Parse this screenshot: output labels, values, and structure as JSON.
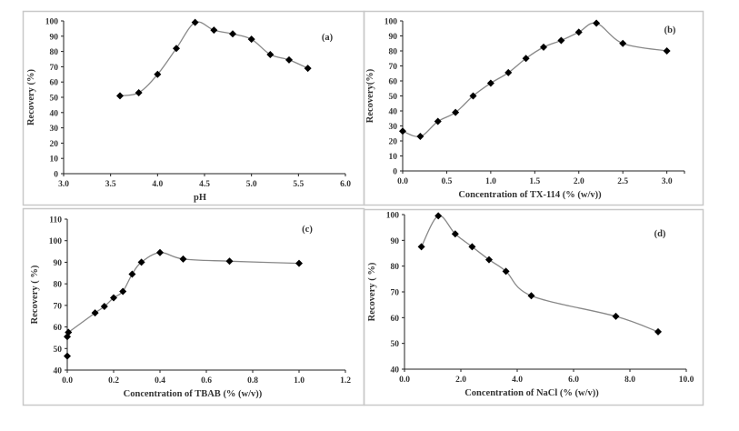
{
  "chart_data": [
    {
      "id": "a",
      "type": "line",
      "panel_label": "(a)",
      "xlabel": "pH",
      "ylabel": "Recovery (%)",
      "xlim": [
        3.0,
        6.0
      ],
      "xticks": [
        3.0,
        3.5,
        4.0,
        4.5,
        5.0,
        5.5,
        6.0
      ],
      "xtick_decimals": 1,
      "ylim": [
        0,
        100
      ],
      "yticks": [
        0,
        10,
        20,
        30,
        40,
        50,
        60,
        70,
        80,
        90,
        100
      ],
      "ytick_decimals": 0,
      "x": [
        3.6,
        3.8,
        4.0,
        4.2,
        4.4,
        4.6,
        4.8,
        5.0,
        5.2,
        5.4,
        5.6
      ],
      "y": [
        51,
        53,
        65,
        82,
        99,
        94,
        91.5,
        88,
        78,
        74.5,
        69
      ]
    },
    {
      "id": "b",
      "type": "line",
      "panel_label": "(b)",
      "xlabel": "Concentration  of TX-114 (% (w/v))",
      "ylabel": "Recovery(%)",
      "xlim": [
        0,
        3.2
      ],
      "xticks": [
        0.0,
        0.5,
        1.0,
        1.5,
        2.0,
        2.5,
        3.0
      ],
      "xtick_decimals": 1,
      "ylim": [
        0,
        100
      ],
      "yticks": [
        0,
        10,
        20,
        30,
        40,
        50,
        60,
        70,
        80,
        90,
        100
      ],
      "ytick_decimals": 0,
      "x": [
        0,
        0.2,
        0.4,
        0.6,
        0.8,
        1.0,
        1.2,
        1.4,
        1.6,
        1.8,
        2.0,
        2.2,
        2.5,
        3.0
      ],
      "y": [
        26.5,
        23,
        33,
        39,
        50,
        58.5,
        65.5,
        75,
        82.5,
        87,
        92.5,
        98.5,
        85,
        80
      ]
    },
    {
      "id": "c",
      "type": "line",
      "panel_label": "(c)",
      "xlabel": "Concentration  of TBAB (% (w/v))",
      "ylabel": "Recovery ( %)",
      "xlim": [
        0,
        1.2
      ],
      "xticks": [
        0.0,
        0.2,
        0.4,
        0.6,
        0.8,
        1.0,
        1.2
      ],
      "xtick_decimals": 1,
      "ylim": [
        40,
        110
      ],
      "yticks": [
        40,
        50,
        60,
        70,
        80,
        90,
        100,
        110
      ],
      "ytick_decimals": 0,
      "x": [
        0,
        0,
        0.005,
        0.12,
        0.16,
        0.2,
        0.24,
        0.28,
        0.32,
        0.4,
        0.5,
        0.7,
        1.0
      ],
      "y": [
        46.5,
        55.5,
        57.5,
        66.5,
        69.5,
        73.5,
        76.5,
        84.5,
        90,
        94.5,
        91.5,
        90.5,
        89.5
      ],
      "line_start_index": 2
    },
    {
      "id": "d",
      "type": "line",
      "panel_label": "(d)",
      "xlabel": "Concentration  of NaCl (% (w/v))",
      "ylabel": "Recovery ( %)",
      "xlim": [
        0,
        10
      ],
      "xticks": [
        0,
        2,
        4,
        6,
        8,
        10
      ],
      "xtick_decimals": 1,
      "ylim": [
        40,
        100
      ],
      "yticks": [
        40,
        50,
        60,
        70,
        80,
        90,
        100
      ],
      "ytick_decimals": 0,
      "x": [
        0.6,
        1.2,
        1.8,
        2.4,
        3.0,
        3.6,
        4.5,
        7.5,
        9.0
      ],
      "y": [
        87.5,
        99.5,
        92.5,
        87.5,
        82.5,
        78,
        68.5,
        60.5,
        54.5
      ]
    }
  ],
  "colors": {
    "line": "#888888",
    "marker": "#000000",
    "axis": "#222222",
    "frame": "#c8c8c8"
  }
}
